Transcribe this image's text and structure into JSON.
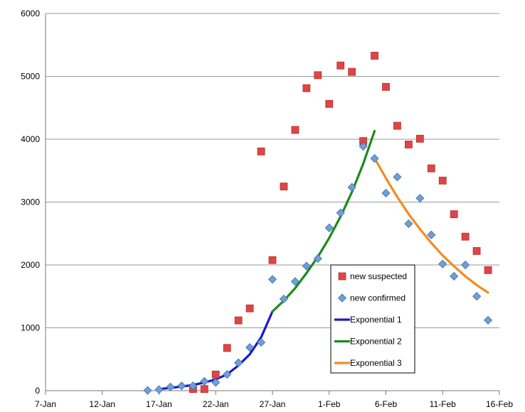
{
  "chart_data": {
    "type": "scatter",
    "title": "",
    "xlabel": "",
    "ylabel": "",
    "x_ticks": [
      "7-Jan",
      "12-Jan",
      "17-Jan",
      "22-Jan",
      "27-Jan",
      "1-Feb",
      "6-Feb",
      "11-Feb",
      "16-Feb"
    ],
    "x_range": [
      "2020-01-07",
      "2020-02-16"
    ],
    "ylim": [
      0,
      6000
    ],
    "y_ticks": [
      0,
      1000,
      2000,
      3000,
      4000,
      5000,
      6000
    ],
    "grid": "horizontal",
    "legend_position": "center-right",
    "series": [
      {
        "name": "new suspected",
        "kind": "marker-square",
        "color": "#e04545",
        "points": [
          [
            "2020-01-20",
            27
          ],
          [
            "2020-01-21",
            26
          ],
          [
            "2020-01-22",
            257
          ],
          [
            "2020-01-23",
            680
          ],
          [
            "2020-01-24",
            1118
          ],
          [
            "2020-01-25",
            1309
          ],
          [
            "2020-01-26",
            3806
          ],
          [
            "2020-01-27",
            2077
          ],
          [
            "2020-01-28",
            3248
          ],
          [
            "2020-01-29",
            4148
          ],
          [
            "2020-01-30",
            4812
          ],
          [
            "2020-01-31",
            5019
          ],
          [
            "2020-02-01",
            4562
          ],
          [
            "2020-02-02",
            5173
          ],
          [
            "2020-02-03",
            5072
          ],
          [
            "2020-02-04",
            3971
          ],
          [
            "2020-02-05",
            5328
          ],
          [
            "2020-02-06",
            4833
          ],
          [
            "2020-02-07",
            4214
          ],
          [
            "2020-02-08",
            3916
          ],
          [
            "2020-02-09",
            4008
          ],
          [
            "2020-02-10",
            3536
          ],
          [
            "2020-02-11",
            3342
          ],
          [
            "2020-02-12",
            2807
          ],
          [
            "2020-02-13",
            2450
          ],
          [
            "2020-02-14",
            2222
          ],
          [
            "2020-02-15",
            1918
          ]
        ]
      },
      {
        "name": "new confirmed",
        "kind": "marker-diamond",
        "color": "#6f9fd6",
        "points": [
          [
            "2020-01-16",
            4
          ],
          [
            "2020-01-17",
            17
          ],
          [
            "2020-01-18",
            59
          ],
          [
            "2020-01-19",
            77
          ],
          [
            "2020-01-20",
            77
          ],
          [
            "2020-01-21",
            149
          ],
          [
            "2020-01-22",
            131
          ],
          [
            "2020-01-23",
            259
          ],
          [
            "2020-01-24",
            444
          ],
          [
            "2020-01-25",
            688
          ],
          [
            "2020-01-26",
            769
          ],
          [
            "2020-01-27",
            1771
          ],
          [
            "2020-01-28",
            1459
          ],
          [
            "2020-01-29",
            1737
          ],
          [
            "2020-01-30",
            1982
          ],
          [
            "2020-01-31",
            2102
          ],
          [
            "2020-02-01",
            2590
          ],
          [
            "2020-02-02",
            2829
          ],
          [
            "2020-02-03",
            3235
          ],
          [
            "2020-02-04",
            3887
          ],
          [
            "2020-02-05",
            3694
          ],
          [
            "2020-02-06",
            3143
          ],
          [
            "2020-02-07",
            3399
          ],
          [
            "2020-02-08",
            2656
          ],
          [
            "2020-02-09",
            3062
          ],
          [
            "2020-02-10",
            2478
          ],
          [
            "2020-02-11",
            2015
          ],
          [
            "2020-02-12",
            1820
          ],
          [
            "2020-02-13",
            2000
          ],
          [
            "2020-02-14",
            1502
          ],
          [
            "2020-02-15",
            1121
          ]
        ]
      },
      {
        "name": "Exponential 1",
        "kind": "line",
        "color": "#1a1acc",
        "points": [
          [
            "2020-01-17",
            25
          ],
          [
            "2020-01-18",
            45
          ],
          [
            "2020-01-19",
            65
          ],
          [
            "2020-01-20",
            90
          ],
          [
            "2020-01-21",
            130
          ],
          [
            "2020-01-22",
            180
          ],
          [
            "2020-01-23",
            260
          ],
          [
            "2020-01-24",
            400
          ],
          [
            "2020-01-25",
            580
          ],
          [
            "2020-01-26",
            850
          ],
          [
            "2020-01-27",
            1260
          ]
        ]
      },
      {
        "name": "Exponential 2",
        "kind": "line",
        "color": "#1a8c1a",
        "points": [
          [
            "2020-01-27",
            1260
          ],
          [
            "2020-01-28",
            1430
          ],
          [
            "2020-01-29",
            1630
          ],
          [
            "2020-01-30",
            1870
          ],
          [
            "2020-01-31",
            2130
          ],
          [
            "2020-02-01",
            2430
          ],
          [
            "2020-02-02",
            2770
          ],
          [
            "2020-02-03",
            3160
          ],
          [
            "2020-02-04",
            3610
          ],
          [
            "2020-02-05",
            4130
          ]
        ]
      },
      {
        "name": "Exponential 3",
        "kind": "line",
        "color": "#f58a1e",
        "points": [
          [
            "2020-02-05",
            3700
          ],
          [
            "2020-02-06",
            3380
          ],
          [
            "2020-02-07",
            3080
          ],
          [
            "2020-02-08",
            2810
          ],
          [
            "2020-02-09",
            2570
          ],
          [
            "2020-02-10",
            2350
          ],
          [
            "2020-02-11",
            2150
          ],
          [
            "2020-02-12",
            1980
          ],
          [
            "2020-02-13",
            1820
          ],
          [
            "2020-02-14",
            1680
          ],
          [
            "2020-02-15",
            1560
          ]
        ]
      }
    ]
  }
}
